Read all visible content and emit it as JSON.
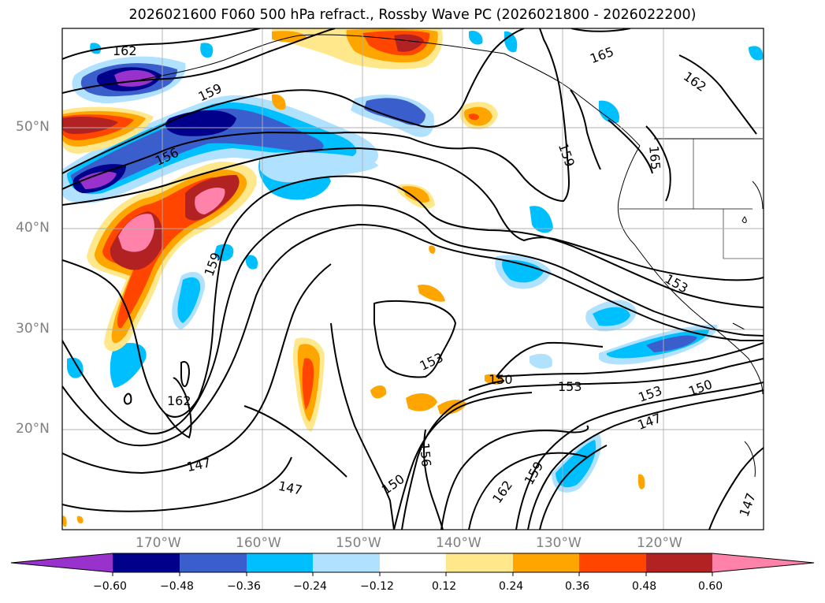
{
  "title": "2026021600 F060 500 hPa refract., Rossby Wave PC (2026021800 - 2026022200)",
  "axes": {
    "lat_labels": [
      "50°N",
      "40°N",
      "30°N",
      "20°N"
    ],
    "lon_labels": [
      "170°W",
      "160°W",
      "150°W",
      "140°W",
      "130°W",
      "120°W"
    ]
  },
  "contour_labels": [
    "162",
    "159",
    "156",
    "165",
    "162",
    "165",
    "159",
    "159",
    "162",
    "153",
    "150",
    "153",
    "153",
    "150",
    "147",
    "147",
    "147",
    "150",
    "156",
    "162",
    "159",
    "147",
    "153"
  ],
  "colorbar": {
    "ticks": [
      "−0.60",
      "−0.48",
      "−0.36",
      "−0.24",
      "−0.12",
      "0.12",
      "0.24",
      "0.36",
      "0.48",
      "0.60"
    ],
    "colors": [
      "#9932cc",
      "#00008b",
      "#3a5fcd",
      "#00bfff",
      "#b0e2ff",
      "#ffffff",
      "#ffe88c",
      "#ffa500",
      "#ff4500",
      "#b22222",
      "#ff82ab"
    ]
  },
  "palette": {
    "neg3": "#3a5fcd",
    "neg2": "#00bfff",
    "neg1": "#b0e2ff",
    "negdeep": "#00008b",
    "negmax": "#9932cc",
    "pos1": "#ffe88c",
    "pos2": "#ffa500",
    "pos3": "#ff4500",
    "pos4": "#b22222",
    "posmax": "#ff82ab"
  }
}
